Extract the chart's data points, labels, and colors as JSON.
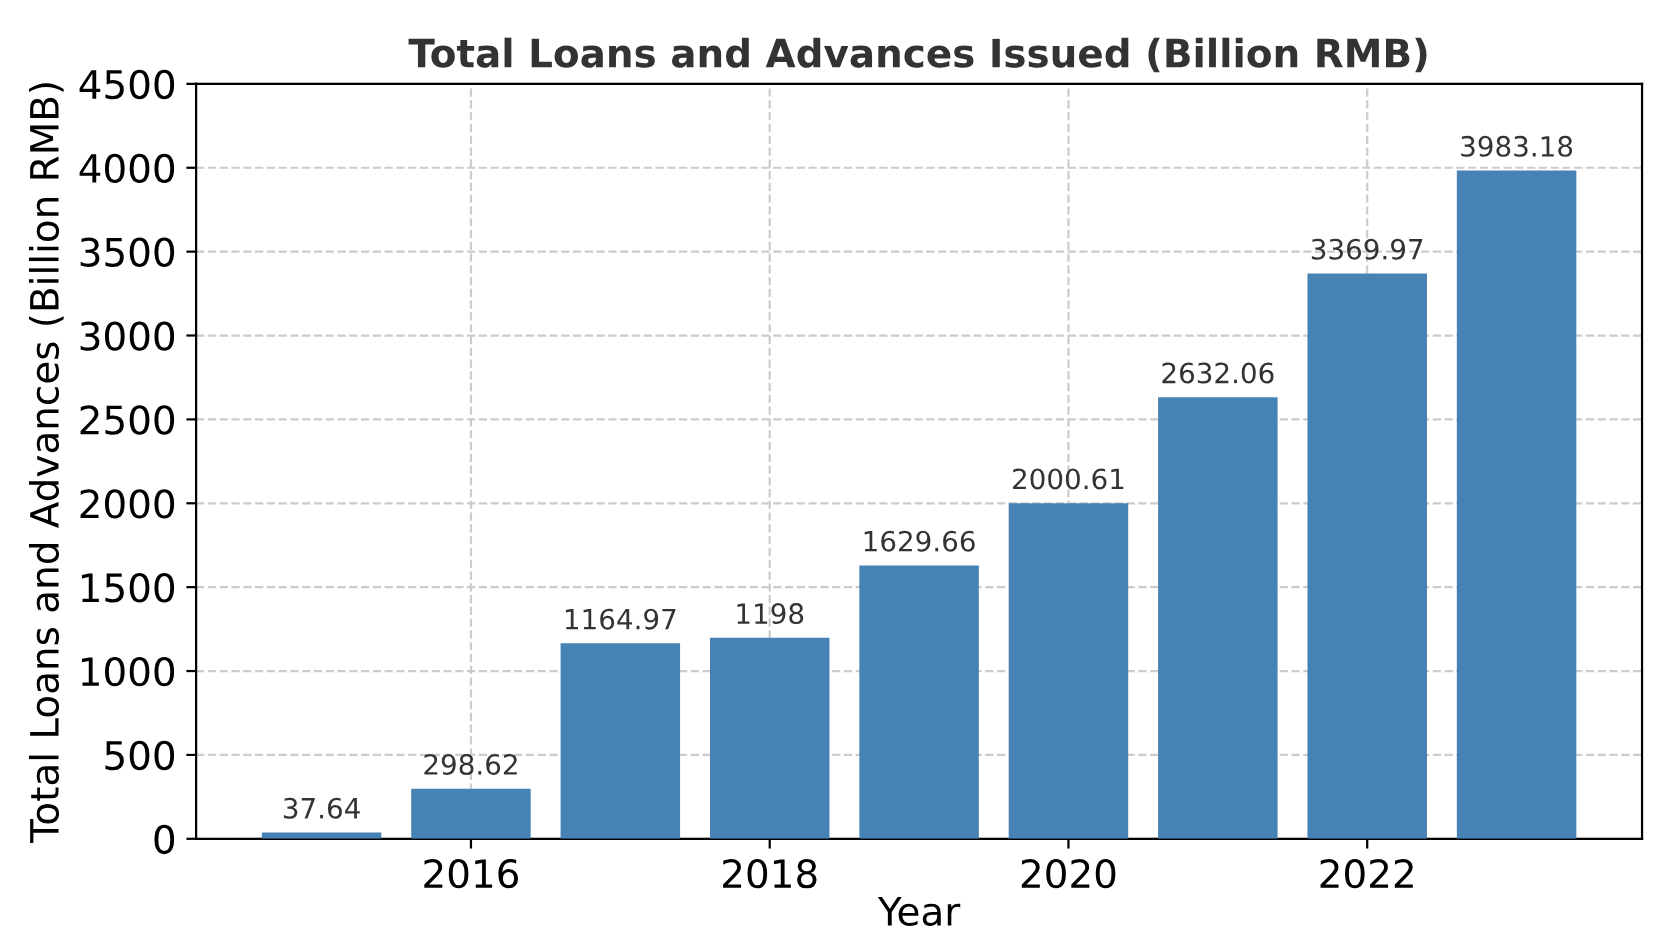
{
  "chart_data": {
    "type": "bar",
    "title": "Total Loans and Advances Issued (Billion RMB)",
    "xlabel": "Year",
    "ylabel": "Total Loans and Advances (Billion RMB)",
    "x": [
      2015,
      2016,
      2017,
      2018,
      2019,
      2020,
      2021,
      2022,
      2023
    ],
    "values": [
      37.64,
      298.62,
      1164.97,
      1198,
      1629.66,
      2000.61,
      2632.06,
      3369.97,
      3983.18
    ],
    "color": "#4682b4",
    "data_labels": true,
    "xlim": [
      2014.16,
      2023.84
    ],
    "xticks": [
      2016,
      2018,
      2020,
      2022
    ],
    "ylim": [
      0,
      4500
    ],
    "yticks": [
      0,
      500,
      1000,
      1500,
      2000,
      2500,
      3000,
      3500,
      4000,
      4500
    ],
    "grid": true,
    "line_style": "dashed"
  }
}
